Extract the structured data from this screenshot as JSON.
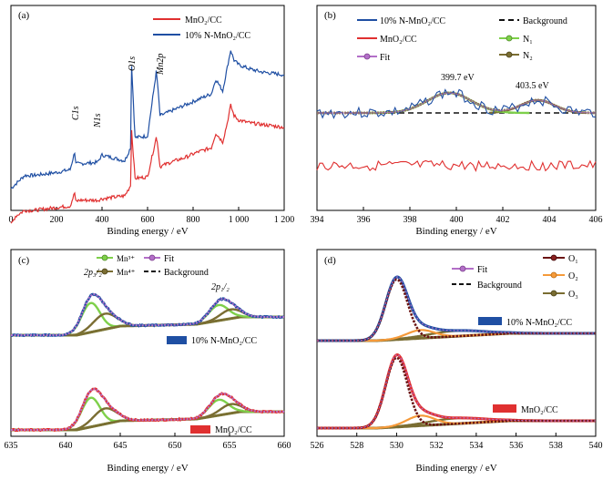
{
  "colors": {
    "blue": "#1f4fa3",
    "red": "#e03030",
    "green": "#7ed04a",
    "olive": "#7a6d32",
    "purple": "#b36fc8",
    "darkred": "#6b1414",
    "orange": "#f59a3a",
    "background": "#111111"
  },
  "chart_data": [
    {
      "panel": "(a)",
      "type": "line",
      "xlabel": "Binding energy / eV",
      "xlim": [
        0,
        1200
      ],
      "xticks": [
        "0",
        "200",
        "400",
        "600",
        "800",
        "1 000",
        "1 200"
      ],
      "legend": [
        "MnO₂/CC",
        "10% N-MnO₂/CC"
      ],
      "peak_labels": [
        "C1s",
        "N1s",
        "O1s",
        "Mn2p"
      ],
      "series": [
        {
          "name": "10% N-MnO₂/CC",
          "x": [
            0,
            20,
            60,
            100,
            150,
            200,
            260,
            280,
            285,
            300,
            380,
            400,
            500,
            525,
            530,
            545,
            600,
            638,
            642,
            655,
            700,
            760,
            820,
            880,
            900,
            930,
            950,
            965,
            980,
            1000,
            1050,
            1100,
            1150,
            1200
          ],
          "y": [
            0.05,
            0.08,
            0.14,
            0.14,
            0.15,
            0.16,
            0.18,
            0.3,
            0.22,
            0.22,
            0.23,
            0.28,
            0.24,
            0.33,
            0.9,
            0.4,
            0.41,
            0.85,
            0.8,
            0.55,
            0.58,
            0.62,
            0.66,
            0.7,
            0.8,
            0.72,
            0.88,
            1.0,
            0.93,
            0.9,
            0.87,
            0.85,
            0.84,
            0.83
          ]
        },
        {
          "name": "MnO₂/CC",
          "x": [
            0,
            20,
            60,
            100,
            150,
            200,
            260,
            280,
            285,
            300,
            380,
            400,
            500,
            525,
            530,
            545,
            600,
            638,
            642,
            655,
            700,
            760,
            820,
            880,
            900,
            930,
            950,
            965,
            980,
            1000,
            1050,
            1100,
            1150,
            1200
          ],
          "y": [
            -0.2,
            -0.14,
            -0.1,
            -0.1,
            -0.09,
            -0.08,
            -0.07,
            0.02,
            -0.04,
            -0.03,
            -0.03,
            -0.02,
            0.0,
            0.07,
            0.45,
            0.12,
            0.13,
            0.4,
            0.38,
            0.2,
            0.23,
            0.26,
            0.3,
            0.33,
            0.43,
            0.37,
            0.5,
            0.62,
            0.55,
            0.52,
            0.5,
            0.49,
            0.48,
            0.47
          ]
        }
      ]
    },
    {
      "panel": "(b)",
      "type": "line",
      "xlabel": "Binding energy / eV",
      "xlim": [
        394,
        406
      ],
      "xticks": [
        "394",
        "396",
        "398",
        "400",
        "402",
        "404",
        "406"
      ],
      "legend": [
        "10% N-MnO₂/CC",
        "MnO₂/CC",
        "Fit",
        "Background",
        "N₁",
        "N₂"
      ],
      "annotations": [
        "399.7 eV",
        "403.5 eV"
      ],
      "peaks": [
        {
          "name": "N₁",
          "center": 399.7,
          "fwhm": 2.2
        },
        {
          "name": "N₂",
          "center": 403.5,
          "fwhm": 1.6
        }
      ]
    },
    {
      "panel": "(c)",
      "type": "line",
      "xlabel": "Binding energy / eV",
      "xlim": [
        635,
        660
      ],
      "xticks": [
        "635",
        "640",
        "645",
        "650",
        "655",
        "660"
      ],
      "legend": [
        "Mn³⁺",
        "Mn⁴⁺",
        "Fit",
        "Background"
      ],
      "peak_labels": [
        "2p₃/₂",
        "2p₁/₂"
      ],
      "sample_labels": [
        "10% N-MnO₂/CC",
        "MnO₂/CC"
      ],
      "peaks": [
        {
          "name": "Mn³⁺",
          "center": 642.3
        },
        {
          "name": "Mn⁴⁺",
          "center": 643.6
        },
        {
          "name": "Mn³⁺",
          "center": 654.0
        },
        {
          "name": "Mn⁴⁺",
          "center": 655.1
        }
      ]
    },
    {
      "panel": "(d)",
      "type": "line",
      "xlabel": "Binding energy / eV",
      "xlim": [
        526,
        540
      ],
      "xticks": [
        "526",
        "528",
        "530",
        "532",
        "534",
        "536",
        "538",
        "540"
      ],
      "legend": [
        "Fit",
        "Background",
        "O₁",
        "O₂",
        "O₃"
      ],
      "sample_labels": [
        "10% N-MnO₂/CC",
        "MnO₂/CC"
      ],
      "peaks": [
        {
          "name": "O₁",
          "center": 530.0
        },
        {
          "name": "O₂",
          "center": 531.2
        },
        {
          "name": "O₃",
          "center": 533.0
        }
      ]
    }
  ]
}
